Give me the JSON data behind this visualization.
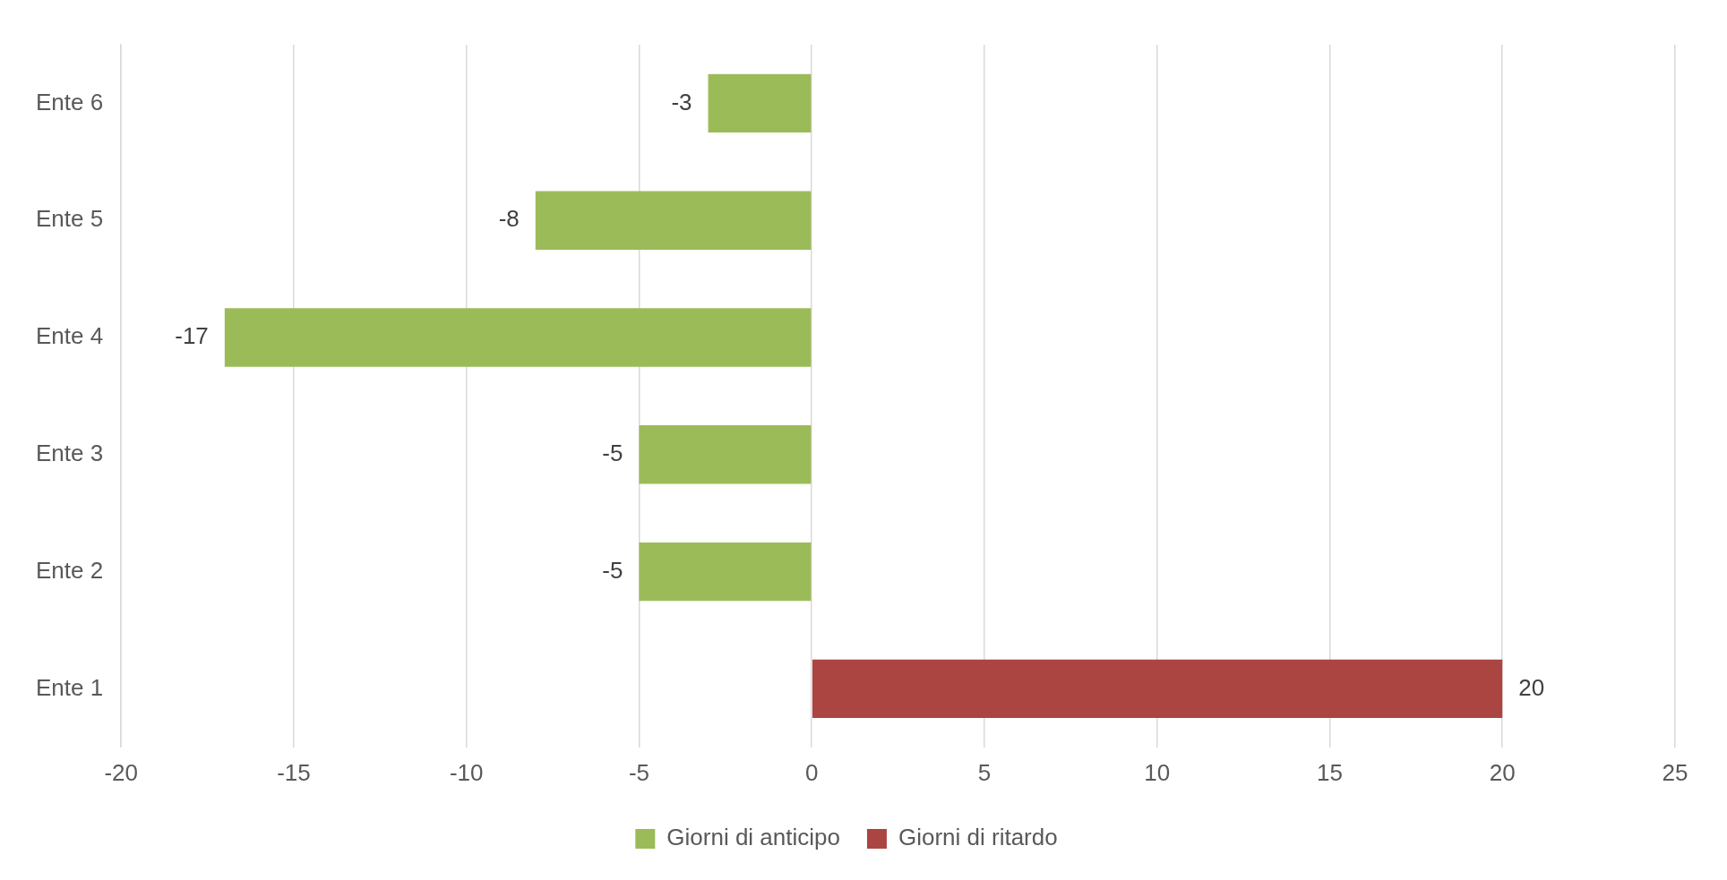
{
  "chart_data": {
    "type": "bar",
    "orientation": "horizontal",
    "categories": [
      "Ente 6",
      "Ente 5",
      "Ente 4",
      "Ente 3",
      "Ente 2",
      "Ente 1"
    ],
    "series": [
      {
        "name": "Giorni di anticipo",
        "color": "#9bbb59",
        "values": [
          -3,
          -8,
          -17,
          -5,
          -5,
          null
        ]
      },
      {
        "name": "Giorni di ritardo",
        "color": "#ab4542",
        "values": [
          null,
          null,
          null,
          null,
          null,
          20
        ]
      }
    ],
    "xlim": [
      -20,
      25
    ],
    "xticks": [
      -20,
      -15,
      -10,
      -5,
      0,
      5,
      10,
      15,
      20,
      25
    ],
    "grid": "x",
    "legend": "bottom",
    "data_labels": true
  }
}
